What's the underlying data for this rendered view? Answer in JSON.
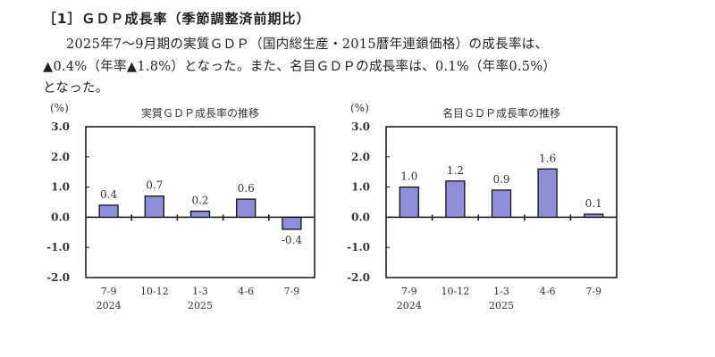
{
  "heading": "［1］ＧＤＰ成長率（季節調整済前期比）",
  "paragraph": [
    "2025年7～9月期の実質ＧＤＰ（国内総生産・2015暦年連鎖価格）の成長率は、",
    "▲0.4%（年率▲1.8%）となった。また、名目ＧＤＰの成長率は、0.1%（年率0.5%）",
    "となった。"
  ],
  "chart_data": [
    {
      "type": "bar",
      "title": "実質ＧＤＰ成長率の推移",
      "ylabel": "(%)",
      "categories": [
        "7-9",
        "10-12",
        "1-3",
        "4-6",
        "7-9"
      ],
      "year_labels": [
        "2024",
        "",
        "2025",
        "",
        ""
      ],
      "values": [
        0.4,
        0.7,
        0.2,
        0.6,
        -0.4
      ],
      "value_labels": [
        "0.4",
        "0.7",
        "0.2",
        "0.6",
        "-0.4"
      ],
      "yticks": [
        "3.0",
        "2.0",
        "1.0",
        "0.0",
        "-1.0",
        "-2.0"
      ],
      "ylim": [
        -2.0,
        3.0
      ],
      "grid": false,
      "bar_color": "#8f8fd9",
      "negative_label_color": "#e8332a"
    },
    {
      "type": "bar",
      "title": "名目ＧＤＰ成長率の推移",
      "ylabel": "(%)",
      "categories": [
        "7-9",
        "10-12",
        "1-3",
        "4-6",
        "7-9"
      ],
      "year_labels": [
        "2024",
        "",
        "2025",
        "",
        ""
      ],
      "values": [
        1.0,
        1.2,
        0.9,
        1.6,
        0.1
      ],
      "value_labels": [
        "1.0",
        "1.2",
        "0.9",
        "1.6",
        "0.1"
      ],
      "yticks": [
        "3.0",
        "2.0",
        "1.0",
        "0.0",
        "-1.0",
        "-2.0"
      ],
      "ylim": [
        -2.0,
        3.0
      ],
      "grid": false,
      "bar_color": "#8f8fd9",
      "negative_label_color": "#e8332a"
    }
  ]
}
